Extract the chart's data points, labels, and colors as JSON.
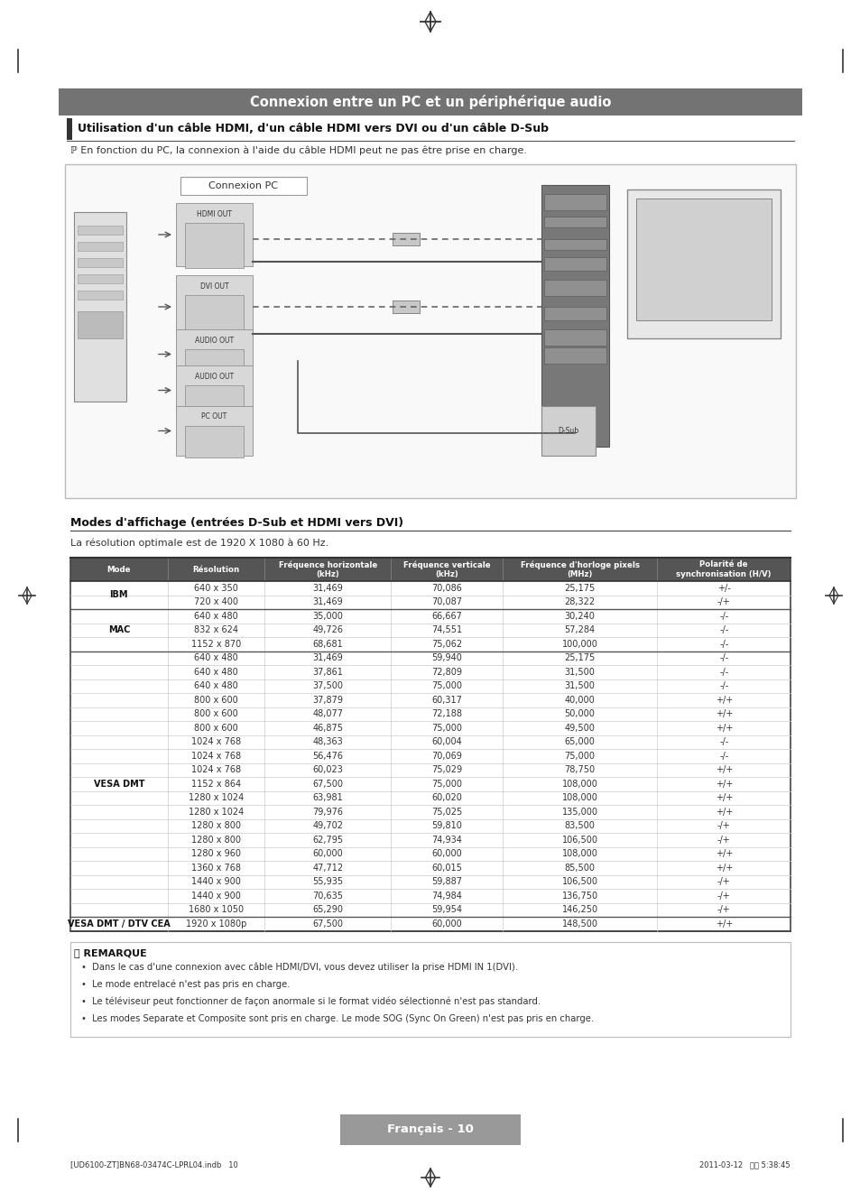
{
  "page_title": "Connexion entre un PC et un périphérique audio",
  "section_title": "Utilisation d'un câble HDMI, d'un câble HDMI vers DVI ou d'un câble D-Sub",
  "note_line": "ℙ En fonction du PC, la connexion à l'aide du câble HDMI peut ne pas être prise en charge.",
  "diagram_label": "Connexion PC",
  "table_title": "Modes d'affichage (entrées D-Sub et HDMI vers DVI)",
  "table_note": "La résolution optimale est de 1920 X 1080 à 60 Hz.",
  "col_headers": [
    "Mode",
    "Résolution",
    "Fréquence horizontale\n(kHz)",
    "Fréquence verticale\n(kHz)",
    "Fréquence d'horloge pixels\n(MHz)",
    "Polarité de\nsynchronisation (H/V)"
  ],
  "table_data": [
    [
      "IBM",
      "640 x 350",
      "31,469",
      "70,086",
      "25,175",
      "+/-"
    ],
    [
      "IBM",
      "720 x 400",
      "31,469",
      "70,087",
      "28,322",
      "-/+"
    ],
    [
      "MAC",
      "640 x 480",
      "35,000",
      "66,667",
      "30,240",
      "-/-"
    ],
    [
      "MAC",
      "832 x 624",
      "49,726",
      "74,551",
      "57,284",
      "-/-"
    ],
    [
      "MAC",
      "1152 x 870",
      "68,681",
      "75,062",
      "100,000",
      "-/-"
    ],
    [
      "VESA DMT",
      "640 x 480",
      "31,469",
      "59,940",
      "25,175",
      "-/-"
    ],
    [
      "VESA DMT",
      "640 x 480",
      "37,861",
      "72,809",
      "31,500",
      "-/-"
    ],
    [
      "VESA DMT",
      "640 x 480",
      "37,500",
      "75,000",
      "31,500",
      "-/-"
    ],
    [
      "VESA DMT",
      "800 x 600",
      "37,879",
      "60,317",
      "40,000",
      "+/+"
    ],
    [
      "VESA DMT",
      "800 x 600",
      "48,077",
      "72,188",
      "50,000",
      "+/+"
    ],
    [
      "VESA DMT",
      "800 x 600",
      "46,875",
      "75,000",
      "49,500",
      "+/+"
    ],
    [
      "VESA DMT",
      "1024 x 768",
      "48,363",
      "60,004",
      "65,000",
      "-/-"
    ],
    [
      "VESA DMT",
      "1024 x 768",
      "56,476",
      "70,069",
      "75,000",
      "-/-"
    ],
    [
      "VESA DMT",
      "1024 x 768",
      "60,023",
      "75,029",
      "78,750",
      "+/+"
    ],
    [
      "VESA DMT",
      "1152 x 864",
      "67,500",
      "75,000",
      "108,000",
      "+/+"
    ],
    [
      "VESA DMT",
      "1280 x 1024",
      "63,981",
      "60,020",
      "108,000",
      "+/+"
    ],
    [
      "VESA DMT",
      "1280 x 1024",
      "79,976",
      "75,025",
      "135,000",
      "+/+"
    ],
    [
      "VESA DMT",
      "1280 x 800",
      "49,702",
      "59,810",
      "83,500",
      "-/+"
    ],
    [
      "VESA DMT",
      "1280 x 800",
      "62,795",
      "74,934",
      "106,500",
      "-/+"
    ],
    [
      "VESA DMT",
      "1280 x 960",
      "60,000",
      "60,000",
      "108,000",
      "+/+"
    ],
    [
      "VESA DMT",
      "1360 x 768",
      "47,712",
      "60,015",
      "85,500",
      "+/+"
    ],
    [
      "VESA DMT",
      "1440 x 900",
      "55,935",
      "59,887",
      "106,500",
      "-/+"
    ],
    [
      "VESA DMT",
      "1440 x 900",
      "70,635",
      "74,984",
      "136,750",
      "-/+"
    ],
    [
      "VESA DMT",
      "1680 x 1050",
      "65,290",
      "59,954",
      "146,250",
      "-/+"
    ],
    [
      "VESA DMT / DTV CEA",
      "1920 x 1080p",
      "67,500",
      "60,000",
      "148,500",
      "+/+"
    ]
  ],
  "remark_title": "REMARQUE",
  "remarks": [
    "Dans le cas d'une connexion avec câble HDMI/DVI, vous devez utiliser la prise HDMI IN 1(DVI).",
    "Le mode entrelacé n'est pas pris en charge.",
    "Le téléviseur peut fonctionner de façon anormale si le format vidéo sélectionné n'est pas standard.",
    "Les modes Separate et Composite sont pris en charge. Le mode SOG (Sync On Green) n'est pas pris en charge."
  ],
  "footer_text": "Français - 10",
  "footer_small_left": "[UD6100-ZT]BN68-03474C-LPRL04.indb   10",
  "footer_small_right": "2011-03-12   오후 5:38:45",
  "bg_color": "#ffffff",
  "header_bar_color": "#737373",
  "table_header_bg": "#555555",
  "border_color": "#aaaaaa",
  "dark_border": "#444444"
}
